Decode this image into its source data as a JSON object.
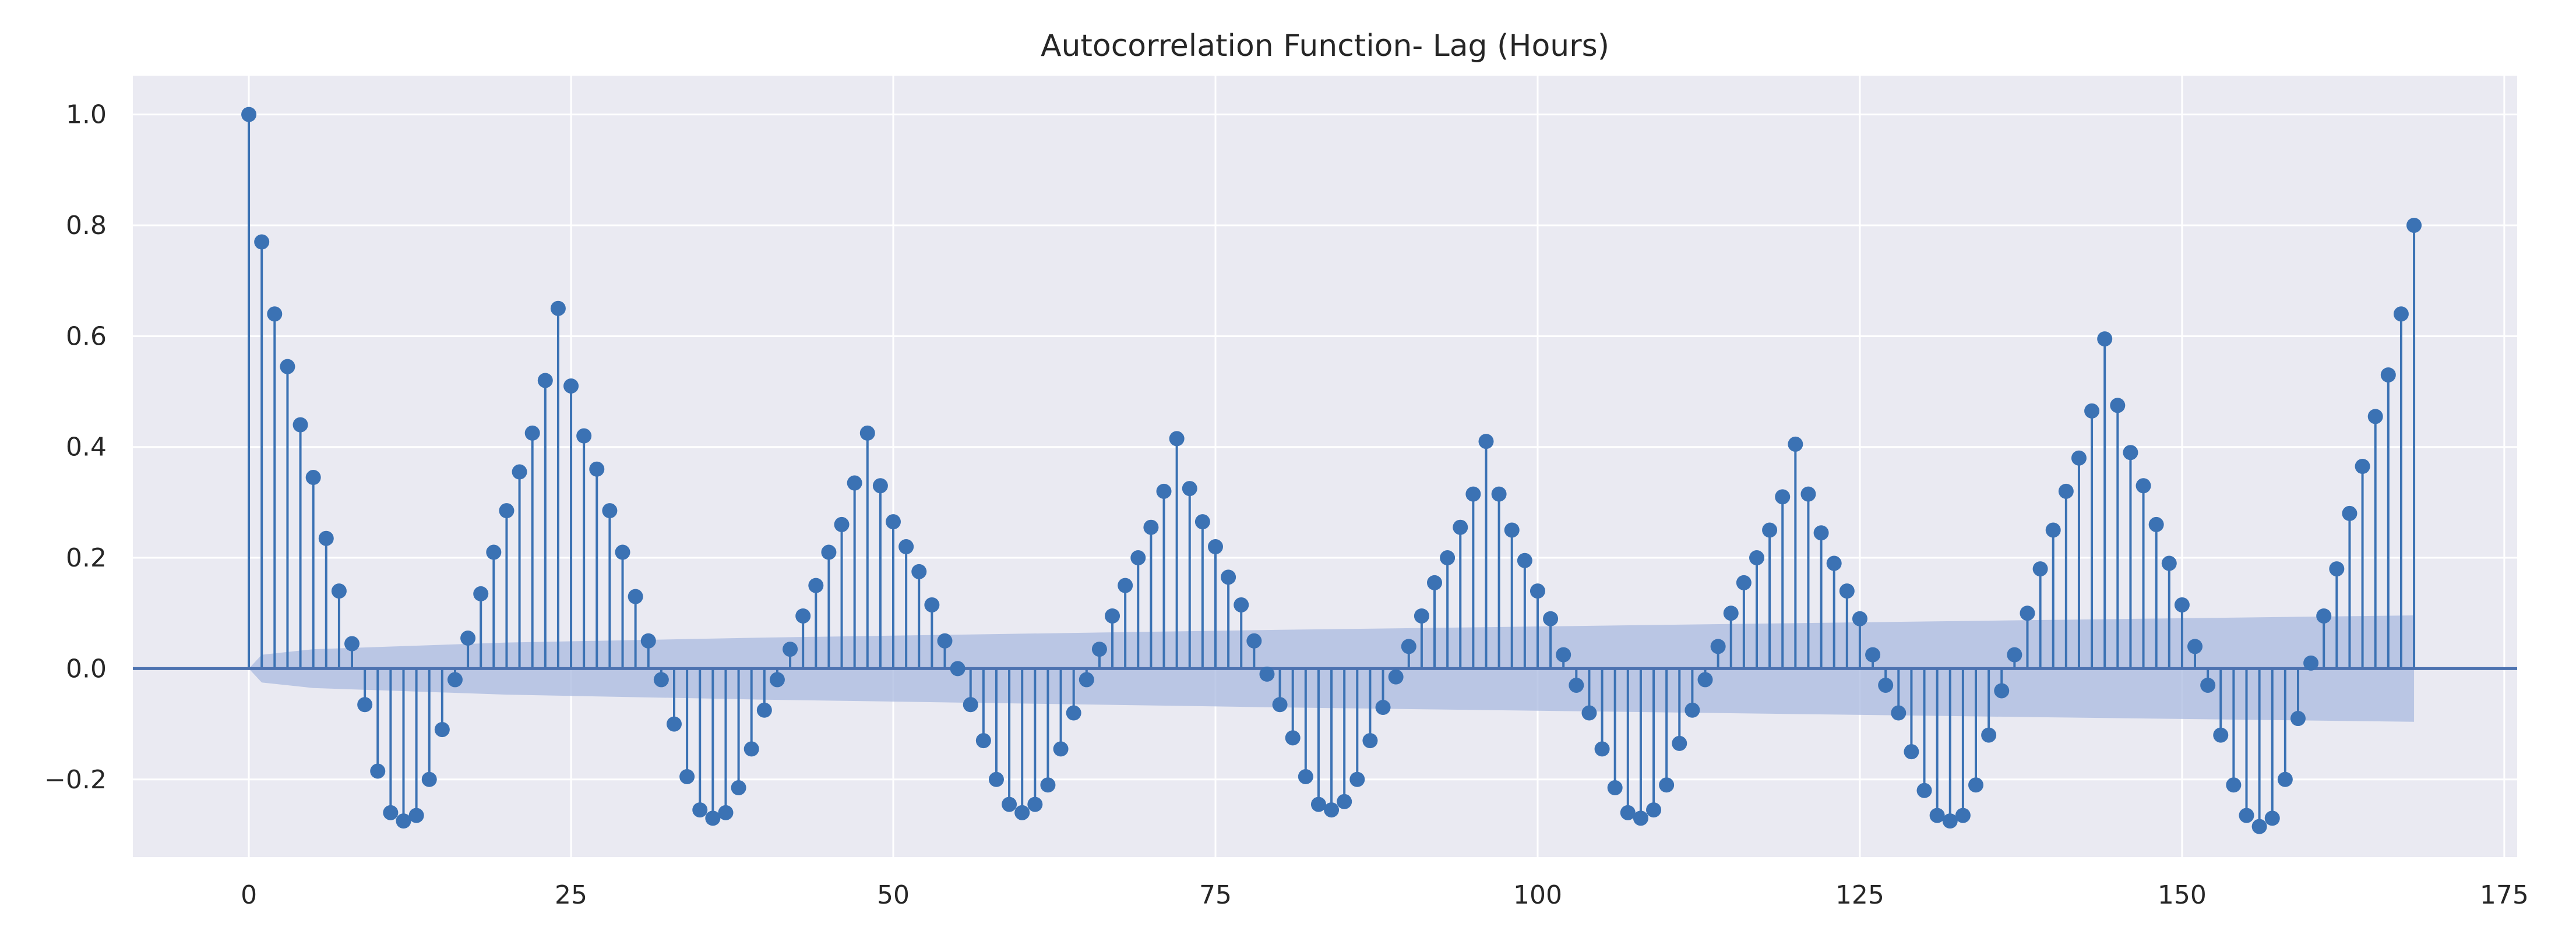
{
  "chart_data": {
    "type": "stem",
    "title": "Autocorrelation Function- Lag (Hours)",
    "xlabel": "",
    "ylabel": "",
    "xlim": [
      -9,
      176
    ],
    "ylim": [
      -0.34,
      1.07
    ],
    "xticks": [
      0,
      25,
      50,
      75,
      100,
      125,
      150,
      175
    ],
    "xtick_labels": [
      "0",
      "25",
      "50",
      "75",
      "100",
      "125",
      "150",
      "175"
    ],
    "yticks": [
      -0.2,
      0.0,
      0.2,
      0.4,
      0.6,
      0.8,
      1.0
    ],
    "ytick_labels": [
      "−0.2",
      "0.0",
      "0.2",
      "0.4",
      "0.6",
      "0.8",
      "1.0"
    ],
    "grid": true,
    "background_color": "#eaeaf2",
    "series_color": "#3b72b4",
    "confidence_band_color": "#a9b9df",
    "zero_line_color": "#4c72b0",
    "confidence_band": {
      "lags": [
        0,
        1,
        5,
        20,
        40,
        60,
        80,
        100,
        120,
        140,
        168
      ],
      "upper": [
        0.0,
        0.025,
        0.035,
        0.047,
        0.056,
        0.063,
        0.07,
        0.076,
        0.082,
        0.088,
        0.096
      ],
      "lower": [
        0.0,
        -0.025,
        -0.035,
        -0.047,
        -0.056,
        -0.063,
        -0.07,
        -0.076,
        -0.082,
        -0.088,
        -0.096
      ]
    },
    "series": [
      {
        "lags": [
          0,
          1,
          2,
          3,
          4,
          5,
          6,
          7,
          8,
          9,
          10,
          11,
          12,
          13,
          14,
          15,
          16,
          17,
          18,
          19,
          20,
          21,
          22,
          23,
          24,
          25,
          26,
          27,
          28,
          29,
          30,
          31,
          32,
          33,
          34,
          35,
          36,
          37,
          38,
          39,
          40,
          41,
          42,
          43,
          44,
          45,
          46,
          47,
          48,
          49,
          50,
          51,
          52,
          53,
          54,
          55,
          56,
          57,
          58,
          59,
          60,
          61,
          62,
          63,
          64,
          65,
          66,
          67,
          68,
          69,
          70,
          71,
          72,
          73,
          74,
          75,
          76,
          77,
          78,
          79,
          80,
          81,
          82,
          83,
          84,
          85,
          86,
          87,
          88,
          89,
          90,
          91,
          92,
          93,
          94,
          95,
          96,
          97,
          98,
          99,
          100,
          101,
          102,
          103,
          104,
          105,
          106,
          107,
          108,
          109,
          110,
          111,
          112,
          113,
          114,
          115,
          116,
          117,
          118,
          119,
          120,
          121,
          122,
          123,
          124,
          125,
          126,
          127,
          128,
          129,
          130,
          131,
          132,
          133,
          134,
          135,
          136,
          137,
          138,
          139,
          140,
          141,
          142,
          143,
          144,
          145,
          146,
          147,
          148,
          149,
          150,
          151,
          152,
          153,
          154,
          155,
          156,
          157,
          158,
          159,
          160,
          161,
          162,
          163,
          164,
          165,
          166,
          167,
          168
        ],
        "values": [
          1.0,
          0.77,
          0.64,
          0.545,
          0.44,
          0.345,
          0.235,
          0.14,
          0.045,
          -0.065,
          -0.185,
          -0.26,
          -0.275,
          -0.265,
          -0.2,
          -0.11,
          -0.02,
          0.055,
          0.135,
          0.21,
          0.285,
          0.355,
          0.425,
          0.52,
          0.65,
          0.51,
          0.42,
          0.36,
          0.285,
          0.21,
          0.13,
          0.05,
          -0.02,
          -0.1,
          -0.195,
          -0.255,
          -0.27,
          -0.26,
          -0.215,
          -0.145,
          -0.075,
          -0.02,
          0.035,
          0.095,
          0.15,
          0.21,
          0.26,
          0.335,
          0.425,
          0.33,
          0.265,
          0.22,
          0.175,
          0.115,
          0.05,
          0.0,
          -0.065,
          -0.13,
          -0.2,
          -0.245,
          -0.26,
          -0.245,
          -0.21,
          -0.145,
          -0.08,
          -0.02,
          0.035,
          0.095,
          0.15,
          0.2,
          0.255,
          0.32,
          0.415,
          0.325,
          0.265,
          0.22,
          0.165,
          0.115,
          0.05,
          -0.01,
          -0.065,
          -0.125,
          -0.195,
          -0.245,
          -0.255,
          -0.24,
          -0.2,
          -0.13,
          -0.07,
          -0.015,
          0.04,
          0.095,
          0.155,
          0.2,
          0.255,
          0.315,
          0.41,
          0.315,
          0.25,
          0.195,
          0.14,
          0.09,
          0.025,
          -0.03,
          -0.08,
          -0.145,
          -0.215,
          -0.26,
          -0.27,
          -0.255,
          -0.21,
          -0.135,
          -0.075,
          -0.02,
          0.04,
          0.1,
          0.155,
          0.2,
          0.25,
          0.31,
          0.405,
          0.315,
          0.245,
          0.19,
          0.14,
          0.09,
          0.025,
          -0.03,
          -0.08,
          -0.15,
          -0.22,
          -0.265,
          -0.275,
          -0.265,
          -0.21,
          -0.12,
          -0.04,
          0.025,
          0.1,
          0.18,
          0.25,
          0.32,
          0.38,
          0.465,
          0.595,
          0.475,
          0.39,
          0.33,
          0.26,
          0.19,
          0.115,
          0.04,
          -0.03,
          -0.12,
          -0.21,
          -0.265,
          -0.285,
          -0.27,
          -0.2,
          -0.09,
          0.01,
          0.095,
          0.18,
          0.28,
          0.365,
          0.455,
          0.53,
          0.64,
          0.8
        ]
      }
    ]
  }
}
